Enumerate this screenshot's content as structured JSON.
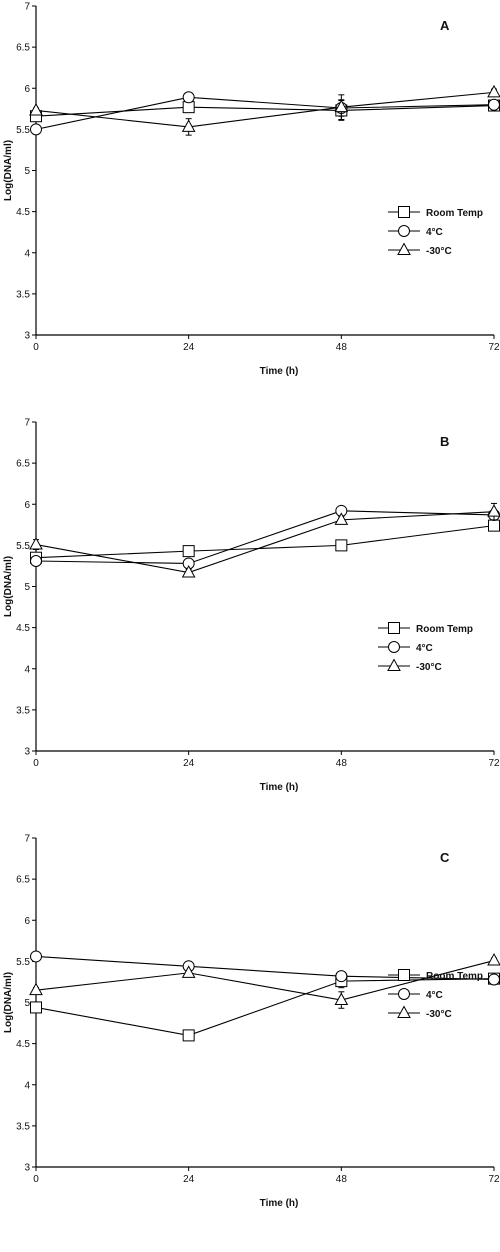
{
  "chart_data": [
    {
      "type": "line",
      "panel_label": "A",
      "x": [
        0,
        24,
        48,
        72
      ],
      "xticks": [
        "0",
        "24",
        "48",
        "72"
      ],
      "xlabel": "Time (h)",
      "ylabel": "Log(DNA/ml)",
      "ylim": [
        3,
        7
      ],
      "yticks": [
        "3",
        "3.5",
        "4",
        "4.5",
        "5",
        "5.5",
        "6",
        "6.5",
        "7"
      ],
      "legend_position": "right",
      "series": [
        {
          "name": "Room Temp",
          "marker": "square",
          "values": [
            5.66,
            5.77,
            5.73,
            5.79
          ],
          "errors": [
            0.03,
            0.05,
            0.12,
            0.05
          ]
        },
        {
          "name": "4°C",
          "marker": "circle",
          "values": [
            5.5,
            5.89,
            5.76,
            5.8
          ],
          "errors": [
            0.03,
            0.03,
            0.1,
            0.04
          ]
        },
        {
          "name": "-30°C",
          "marker": "triangle",
          "values": [
            5.73,
            5.53,
            5.77,
            5.95
          ],
          "errors": [
            0.03,
            0.1,
            0.15,
            0.04
          ]
        }
      ]
    },
    {
      "type": "line",
      "panel_label": "B",
      "x": [
        0,
        24,
        48,
        72
      ],
      "xticks": [
        "0",
        "24",
        "48",
        "72"
      ],
      "xlabel": "Time (h)",
      "ylabel": "Log(DNA/ml)",
      "ylim": [
        3,
        7
      ],
      "yticks": [
        "3",
        "3.5",
        "4",
        "4.5",
        "5",
        "5.5",
        "6",
        "6.5",
        "7"
      ],
      "legend_position": "right",
      "series": [
        {
          "name": "Room Temp",
          "marker": "square",
          "values": [
            5.35,
            5.43,
            5.5,
            5.74
          ],
          "errors": [
            0.03,
            0.03,
            0.03,
            0.04
          ]
        },
        {
          "name": "4°C",
          "marker": "circle",
          "values": [
            5.31,
            5.28,
            5.92,
            5.87
          ],
          "errors": [
            0.03,
            0.03,
            0.03,
            0.05
          ]
        },
        {
          "name": "-30°C",
          "marker": "triangle",
          "values": [
            5.51,
            5.17,
            5.81,
            5.91
          ],
          "errors": [
            0.06,
            0.04,
            0.04,
            0.1
          ]
        }
      ]
    },
    {
      "type": "line",
      "panel_label": "C",
      "x": [
        0,
        24,
        48,
        72
      ],
      "xticks": [
        "0",
        "24",
        "48",
        "72"
      ],
      "xlabel": "Time (h)",
      "ylabel": "Log(DNA/ml)",
      "ylim": [
        3,
        7
      ],
      "yticks": [
        "3",
        "3.5",
        "4",
        "4.5",
        "5",
        "5.5",
        "6",
        "6.5",
        "7"
      ],
      "legend_position": "right",
      "series": [
        {
          "name": "Room Temp",
          "marker": "square",
          "values": [
            4.94,
            4.6,
            5.26,
            5.29
          ],
          "errors": [
            0.03,
            0.03,
            0.08,
            0.03
          ]
        },
        {
          "name": "4°C",
          "marker": "circle",
          "values": [
            5.56,
            5.44,
            5.32,
            5.28
          ],
          "errors": [
            0.03,
            0.03,
            0.03,
            0.03
          ]
        },
        {
          "name": "-30°C",
          "marker": "triangle",
          "values": [
            5.15,
            5.36,
            5.03,
            5.51
          ],
          "errors": [
            0.03,
            0.03,
            0.1,
            0.03
          ]
        }
      ]
    }
  ]
}
